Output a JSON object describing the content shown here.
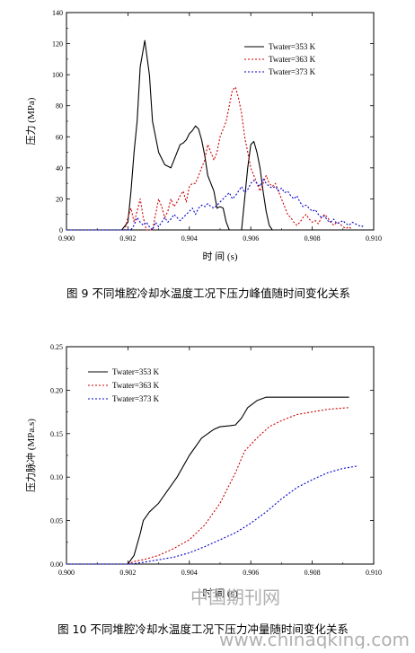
{
  "chart_data": [
    {
      "type": "line",
      "title": "",
      "xlabel": "时  间 (s)",
      "ylabel": "压力 (MPa)",
      "xlim": [
        0.9,
        0.91
      ],
      "ylim": [
        0,
        140
      ],
      "xticks": [
        "0.900",
        "0.902",
        "0.904",
        "0.906",
        "0.908",
        "0.910"
      ],
      "xtick_values": [
        0.9,
        0.902,
        0.904,
        0.906,
        0.908,
        0.91
      ],
      "yticks": [
        "0",
        "20",
        "40",
        "60",
        "80",
        "100",
        "120",
        "140"
      ],
      "ytick_values": [
        0,
        20,
        40,
        60,
        80,
        100,
        120,
        140
      ],
      "legend_position": "top-right",
      "grid": false,
      "caption": "图 9 不同堆腔冷却水温度工况下压力峰值随时间变化关系",
      "series": [
        {
          "name": "Twater=353 K",
          "color": "#000000",
          "style": "solid",
          "points": [
            [
              0.9,
              0
            ],
            [
              0.9018,
              0
            ],
            [
              0.902,
              5
            ],
            [
              0.9021,
              25
            ],
            [
              0.9022,
              50
            ],
            [
              0.9023,
              70
            ],
            [
              0.9024,
              105
            ],
            [
              0.90255,
              122
            ],
            [
              0.9027,
              100
            ],
            [
              0.9028,
              70
            ],
            [
              0.903,
              50
            ],
            [
              0.9032,
              42
            ],
            [
              0.9034,
              40
            ],
            [
              0.9036,
              50
            ],
            [
              0.9037,
              55
            ],
            [
              0.9038,
              56
            ],
            [
              0.9039,
              58
            ],
            [
              0.904,
              62
            ],
            [
              0.9041,
              64
            ],
            [
              0.9042,
              67
            ],
            [
              0.9043,
              65
            ],
            [
              0.9044,
              58
            ],
            [
              0.9045,
              48
            ],
            [
              0.9046,
              35
            ],
            [
              0.9047,
              30
            ],
            [
              0.9048,
              25
            ],
            [
              0.9049,
              14
            ],
            [
              0.905,
              15
            ],
            [
              0.9051,
              14
            ],
            [
              0.9052,
              5
            ],
            [
              0.9053,
              0
            ],
            [
              0.9057,
              0
            ],
            [
              0.9058,
              20
            ],
            [
              0.9059,
              40
            ],
            [
              0.906,
              55
            ],
            [
              0.9061,
              57
            ],
            [
              0.9062,
              50
            ],
            [
              0.9063,
              40
            ],
            [
              0.9064,
              25
            ],
            [
              0.9065,
              12
            ],
            [
              0.9066,
              3
            ],
            [
              0.9067,
              0
            ],
            [
              0.9097,
              0
            ]
          ]
        },
        {
          "name": "Twater=363 K",
          "color": "#cc0000",
          "style": "dotted",
          "points": [
            [
              0.9,
              0
            ],
            [
              0.9019,
              0
            ],
            [
              0.902,
              8
            ],
            [
              0.9021,
              14
            ],
            [
              0.9022,
              5
            ],
            [
              0.9023,
              12
            ],
            [
              0.9024,
              20
            ],
            [
              0.9025,
              8
            ],
            [
              0.9026,
              0
            ],
            [
              0.9028,
              0
            ],
            [
              0.9029,
              10
            ],
            [
              0.903,
              20
            ],
            [
              0.9031,
              15
            ],
            [
              0.9032,
              8
            ],
            [
              0.9033,
              12
            ],
            [
              0.9034,
              20
            ],
            [
              0.9035,
              15
            ],
            [
              0.9036,
              18
            ],
            [
              0.9037,
              22
            ],
            [
              0.9038,
              25
            ],
            [
              0.9039,
              18
            ],
            [
              0.904,
              28
            ],
            [
              0.9041,
              30
            ],
            [
              0.9042,
              30
            ],
            [
              0.9043,
              35
            ],
            [
              0.9044,
              40
            ],
            [
              0.9045,
              45
            ],
            [
              0.9046,
              55
            ],
            [
              0.9047,
              50
            ],
            [
              0.9048,
              45
            ],
            [
              0.9049,
              50
            ],
            [
              0.905,
              60
            ],
            [
              0.9051,
              65
            ],
            [
              0.9052,
              70
            ],
            [
              0.9053,
              80
            ],
            [
              0.9054,
              90
            ],
            [
              0.9055,
              92
            ],
            [
              0.9056,
              85
            ],
            [
              0.9057,
              75
            ],
            [
              0.9058,
              60
            ],
            [
              0.9059,
              50
            ],
            [
              0.906,
              40
            ],
            [
              0.9061,
              35
            ],
            [
              0.9062,
              30
            ],
            [
              0.9063,
              25
            ],
            [
              0.9064,
              30
            ],
            [
              0.9065,
              35
            ],
            [
              0.9066,
              30
            ],
            [
              0.9067,
              28
            ],
            [
              0.9068,
              30
            ],
            [
              0.9069,
              25
            ],
            [
              0.907,
              20
            ],
            [
              0.9071,
              15
            ],
            [
              0.9072,
              10
            ],
            [
              0.9073,
              8
            ],
            [
              0.9074,
              5
            ],
            [
              0.9075,
              3
            ],
            [
              0.9076,
              5
            ],
            [
              0.9077,
              8
            ],
            [
              0.9078,
              10
            ],
            [
              0.9079,
              7
            ],
            [
              0.908,
              5
            ],
            [
              0.9081,
              6
            ],
            [
              0.9082,
              4
            ],
            [
              0.9083,
              8
            ],
            [
              0.9084,
              10
            ],
            [
              0.9085,
              8
            ],
            [
              0.9086,
              5
            ],
            [
              0.9087,
              3
            ],
            [
              0.9088,
              5
            ],
            [
              0.9089,
              4
            ],
            [
              0.909,
              2
            ],
            [
              0.9091,
              1
            ],
            [
              0.9092,
              2
            ],
            [
              0.9093,
              0
            ]
          ]
        },
        {
          "name": "Twater=373 K",
          "color": "#0000cc",
          "style": "dotted",
          "points": [
            [
              0.9,
              0
            ],
            [
              0.9021,
              0
            ],
            [
              0.9022,
              3
            ],
            [
              0.9023,
              8
            ],
            [
              0.9024,
              5
            ],
            [
              0.9025,
              3
            ],
            [
              0.9026,
              5
            ],
            [
              0.9027,
              2
            ],
            [
              0.9028,
              0
            ],
            [
              0.9029,
              5
            ],
            [
              0.903,
              2
            ],
            [
              0.9031,
              5
            ],
            [
              0.9032,
              8
            ],
            [
              0.9033,
              5
            ],
            [
              0.9034,
              7
            ],
            [
              0.9035,
              10
            ],
            [
              0.9036,
              8
            ],
            [
              0.9037,
              6
            ],
            [
              0.9038,
              8
            ],
            [
              0.9039,
              10
            ],
            [
              0.904,
              12
            ],
            [
              0.9041,
              14
            ],
            [
              0.9042,
              10
            ],
            [
              0.9043,
              14
            ],
            [
              0.9044,
              16
            ],
            [
              0.9045,
              15
            ],
            [
              0.9046,
              17
            ],
            [
              0.9047,
              15
            ],
            [
              0.9048,
              14
            ],
            [
              0.9049,
              16
            ],
            [
              0.905,
              18
            ],
            [
              0.9051,
              20
            ],
            [
              0.9052,
              22
            ],
            [
              0.9053,
              24
            ],
            [
              0.9054,
              20
            ],
            [
              0.9055,
              22
            ],
            [
              0.9056,
              25
            ],
            [
              0.9057,
              28
            ],
            [
              0.9058,
              24
            ],
            [
              0.9059,
              26
            ],
            [
              0.906,
              30
            ],
            [
              0.9061,
              32
            ],
            [
              0.9062,
              30
            ],
            [
              0.9063,
              28
            ],
            [
              0.9064,
              33
            ],
            [
              0.9065,
              30
            ],
            [
              0.9066,
              28
            ],
            [
              0.9067,
              27
            ],
            [
              0.9068,
              28
            ],
            [
              0.9069,
              25
            ],
            [
              0.907,
              27
            ],
            [
              0.9071,
              24
            ],
            [
              0.9072,
              25
            ],
            [
              0.9073,
              22
            ],
            [
              0.9074,
              20
            ],
            [
              0.9075,
              22
            ],
            [
              0.9076,
              18
            ],
            [
              0.9077,
              15
            ],
            [
              0.9078,
              16
            ],
            [
              0.9079,
              14
            ],
            [
              0.908,
              12
            ],
            [
              0.9081,
              13
            ],
            [
              0.9082,
              10
            ],
            [
              0.9083,
              8
            ],
            [
              0.9084,
              9
            ],
            [
              0.9085,
              6
            ],
            [
              0.9086,
              5
            ],
            [
              0.9087,
              7
            ],
            [
              0.9088,
              4
            ],
            [
              0.9089,
              5
            ],
            [
              0.909,
              6
            ],
            [
              0.9091,
              4
            ],
            [
              0.9092,
              3
            ],
            [
              0.9093,
              5
            ],
            [
              0.9094,
              4
            ],
            [
              0.9095,
              3
            ],
            [
              0.9096,
              2
            ],
            [
              0.9097,
              3
            ]
          ]
        }
      ]
    },
    {
      "type": "line",
      "title": "",
      "xlabel": "时  间 (s)",
      "ylabel": "压力脉冲 (MPa.s)",
      "xlim": [
        0.9,
        0.91
      ],
      "ylim": [
        0,
        0.25
      ],
      "xticks": [
        "0.900",
        "0.902",
        "0.904",
        "0.906",
        "0.908",
        "0.910"
      ],
      "xtick_values": [
        0.9,
        0.902,
        0.904,
        0.906,
        0.908,
        0.91
      ],
      "yticks": [
        "0.00",
        "0.05",
        "0.10",
        "0.15",
        "0.20",
        "0.25"
      ],
      "ytick_values": [
        0,
        0.05,
        0.1,
        0.15,
        0.2,
        0.25
      ],
      "legend_position": "top-left",
      "grid": false,
      "caption": "图 10 不同堆腔冷却水温度工况下压力冲量随时间变化关系",
      "series": [
        {
          "name": "Twater=353 K",
          "color": "#000000",
          "style": "solid",
          "points": [
            [
              0.9,
              0
            ],
            [
              0.902,
              0
            ],
            [
              0.9022,
              0.01
            ],
            [
              0.9024,
              0.035
            ],
            [
              0.9025,
              0.05
            ],
            [
              0.9027,
              0.06
            ],
            [
              0.903,
              0.07
            ],
            [
              0.9033,
              0.085
            ],
            [
              0.9036,
              0.1
            ],
            [
              0.904,
              0.125
            ],
            [
              0.9044,
              0.145
            ],
            [
              0.9048,
              0.155
            ],
            [
              0.905,
              0.158
            ],
            [
              0.9053,
              0.159
            ],
            [
              0.9055,
              0.16
            ],
            [
              0.9057,
              0.168
            ],
            [
              0.9059,
              0.18
            ],
            [
              0.9062,
              0.188
            ],
            [
              0.9065,
              0.192
            ],
            [
              0.907,
              0.192
            ],
            [
              0.908,
              0.192
            ],
            [
              0.9092,
              0.192
            ]
          ]
        },
        {
          "name": "Twater=363 K",
          "color": "#cc0000",
          "style": "dotted",
          "points": [
            [
              0.9,
              0
            ],
            [
              0.902,
              0
            ],
            [
              0.9022,
              0.003
            ],
            [
              0.9025,
              0.005
            ],
            [
              0.903,
              0.01
            ],
            [
              0.9035,
              0.018
            ],
            [
              0.904,
              0.028
            ],
            [
              0.9045,
              0.045
            ],
            [
              0.905,
              0.07
            ],
            [
              0.9055,
              0.105
            ],
            [
              0.9058,
              0.13
            ],
            [
              0.9062,
              0.145
            ],
            [
              0.9066,
              0.158
            ],
            [
              0.907,
              0.165
            ],
            [
              0.9075,
              0.172
            ],
            [
              0.908,
              0.175
            ],
            [
              0.9085,
              0.178
            ],
            [
              0.9092,
              0.18
            ]
          ]
        },
        {
          "name": "Twater=373 K",
          "color": "#0000cc",
          "style": "dotted",
          "points": [
            [
              0.9,
              0
            ],
            [
              0.9021,
              0
            ],
            [
              0.9025,
              0.002
            ],
            [
              0.903,
              0.005
            ],
            [
              0.9035,
              0.008
            ],
            [
              0.904,
              0.013
            ],
            [
              0.9045,
              0.02
            ],
            [
              0.905,
              0.028
            ],
            [
              0.9055,
              0.036
            ],
            [
              0.906,
              0.047
            ],
            [
              0.9065,
              0.06
            ],
            [
              0.907,
              0.075
            ],
            [
              0.9075,
              0.088
            ],
            [
              0.908,
              0.097
            ],
            [
              0.9085,
              0.105
            ],
            [
              0.909,
              0.11
            ],
            [
              0.9095,
              0.113
            ]
          ]
        }
      ]
    }
  ],
  "watermark": {
    "cn": "中国期刊网",
    "url": "www.chinaqking.com"
  }
}
